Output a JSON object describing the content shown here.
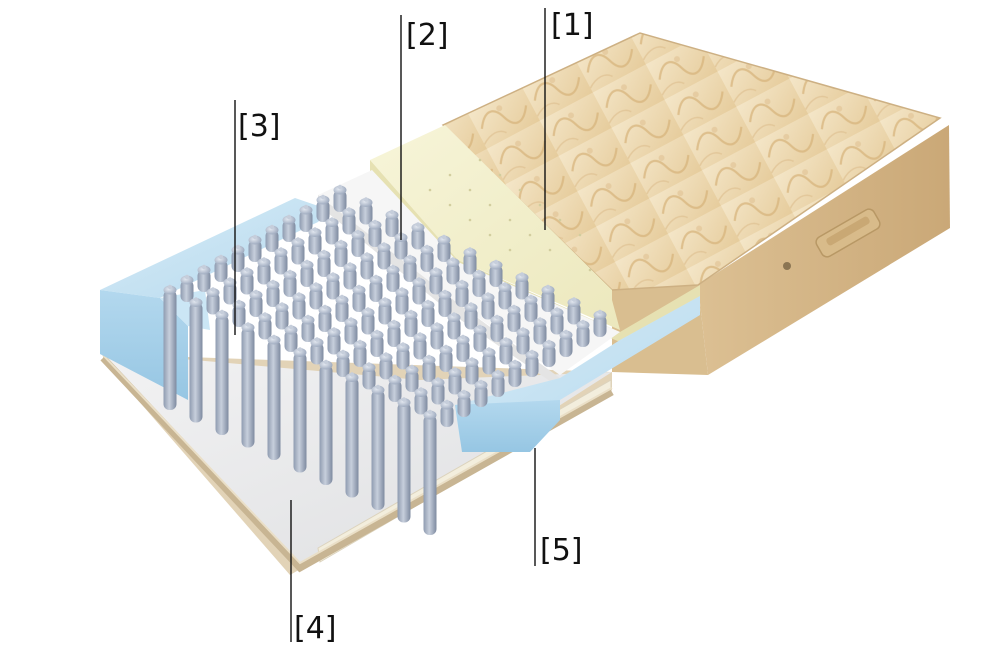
{
  "callouts": [
    {
      "id": "1",
      "label": "[1]"
    },
    {
      "id": "2",
      "label": "[2]"
    },
    {
      "id": "3",
      "label": "[3]"
    },
    {
      "id": "4",
      "label": "[4]"
    },
    {
      "id": "5",
      "label": "[5]"
    }
  ],
  "colors": {
    "cover_fabric": "#efdcb8",
    "cover_pattern": "#d9b57c",
    "side_fabric": "#e2c99c",
    "latex_layer": "#f3f0c9",
    "felt_layer": "#f4f4f4",
    "foam_frame": "#bfe0f2",
    "springs": "#a9b4c6",
    "base_felt": "#e9e9ea"
  }
}
